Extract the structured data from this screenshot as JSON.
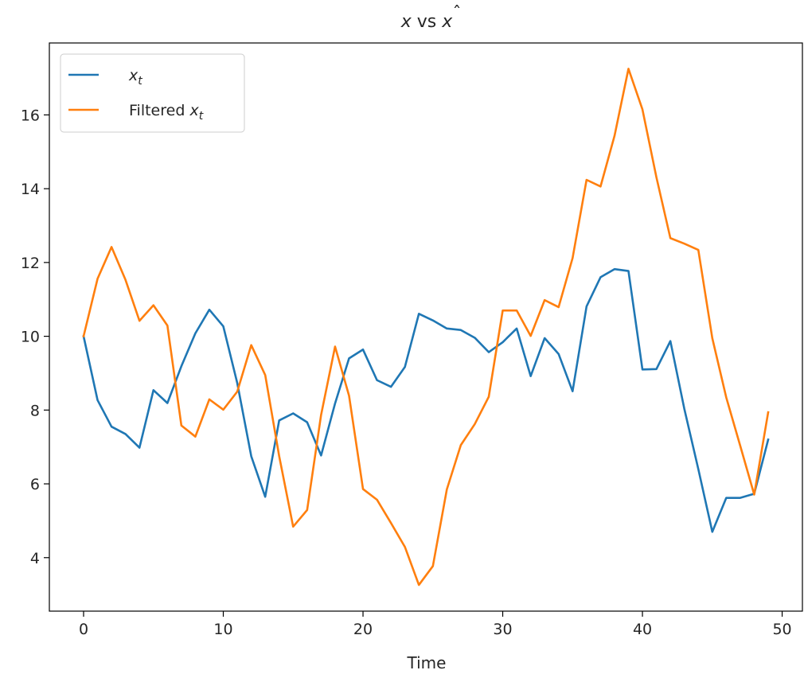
{
  "chart_data": {
    "type": "line",
    "title_parts": {
      "a": "x",
      "mid": " vs ",
      "b": "x",
      "b_accent": "ˆ"
    },
    "xlabel": "Time",
    "ylabel": "",
    "xlim": [
      -2.45,
      51.45
    ],
    "ylim": [
      2.55,
      17.95
    ],
    "xticks": [
      0,
      10,
      20,
      30,
      40,
      50
    ],
    "yticks": [
      4,
      6,
      8,
      10,
      12,
      14,
      16
    ],
    "grid": false,
    "legend_position": "upper-left",
    "x": [
      0,
      1,
      2,
      3,
      4,
      5,
      6,
      7,
      8,
      9,
      10,
      11,
      12,
      13,
      14,
      15,
      16,
      17,
      18,
      19,
      20,
      21,
      22,
      23,
      24,
      25,
      26,
      27,
      28,
      29,
      30,
      31,
      32,
      33,
      34,
      35,
      36,
      37,
      38,
      39,
      40,
      41,
      42,
      43,
      44,
      45,
      46,
      47,
      48,
      49
    ],
    "series": [
      {
        "name_base": "x",
        "name_sub": "t",
        "name_prefix": "",
        "color": "#1f77b4",
        "values": [
          10.0,
          8.27,
          7.55,
          7.35,
          6.98,
          8.54,
          8.19,
          9.19,
          10.08,
          10.72,
          10.27,
          8.73,
          6.75,
          5.65,
          7.72,
          7.91,
          7.67,
          6.77,
          8.18,
          9.4,
          9.64,
          8.81,
          8.63,
          9.17,
          10.61,
          10.43,
          10.21,
          10.17,
          9.96,
          9.57,
          9.84,
          10.21,
          8.92,
          9.95,
          9.52,
          8.51,
          10.81,
          11.6,
          11.82,
          11.77,
          9.1,
          9.11,
          9.87,
          8.03,
          6.4,
          4.7,
          5.62,
          5.62,
          5.73,
          7.2
        ]
      },
      {
        "name_base": "x",
        "name_sub": "t",
        "name_prefix": "Filtered ",
        "color": "#ff7f0e",
        "values": [
          10.0,
          11.56,
          12.42,
          11.53,
          10.42,
          10.84,
          10.29,
          7.58,
          7.28,
          8.29,
          8.01,
          8.5,
          9.76,
          8.95,
          6.75,
          4.84,
          5.29,
          7.87,
          9.72,
          8.39,
          5.86,
          5.57,
          4.94,
          4.29,
          3.26,
          3.77,
          5.85,
          7.05,
          7.62,
          8.36,
          10.7,
          10.7,
          10.01,
          10.98,
          10.79,
          12.12,
          14.24,
          14.06,
          15.43,
          17.25,
          16.15,
          14.31,
          12.66,
          12.51,
          12.34,
          9.95,
          8.34,
          7.03,
          5.71,
          7.94
        ]
      }
    ]
  }
}
